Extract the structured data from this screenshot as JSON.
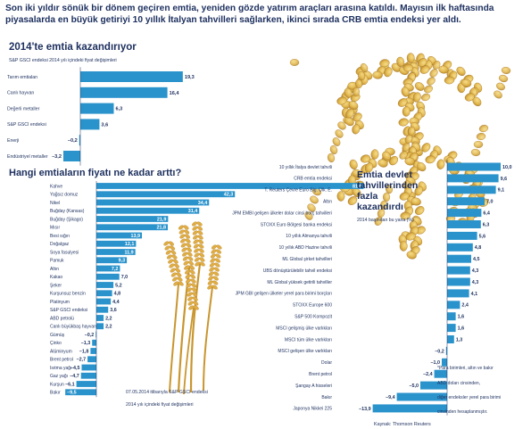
{
  "intro": "Son iki yıldır sönük bir dönem geçiren emtia, yeniden gözde yatırım araçları arasına katıldı. Mayısın ilk haftasında piyasalarda en büyük getiriyi 10 yıllık İtalyan tahvilleri sağlarken, ikinci sırada CRB emtia endeksi yer aldı.",
  "chart_data": [
    {
      "type": "bar",
      "orientation": "horizontal",
      "title": "2014'te emtia kazandırıyor",
      "subtitle": "S&P GSCI endeksi 2014 yılı içindeki fiyat değişimleri",
      "categories": [
        "Tarım emtiaları",
        "Canlı hayvan",
        "Değerli metaller",
        "S&P GSCI endeksi",
        "Enerji",
        "Endüstriyel metaller"
      ],
      "values": [
        19.3,
        16.4,
        6.3,
        3.6,
        -0.2,
        -3.2
      ],
      "labels": [
        "19,3",
        "16,4",
        "6,3",
        "3,6",
        "–0,2",
        "–3,2"
      ],
      "colors": {
        "bar": "#2a93cc",
        "text": "#1c2f5e"
      }
    },
    {
      "type": "bar",
      "orientation": "horizontal",
      "title": "Hangi emtiaların fiyatı ne kadar arttı?",
      "categories": [
        "Kahve",
        "Yağsız domuz",
        "Nikel",
        "Buğday (Kansas)",
        "Buğday (Şikago)",
        "Mısır",
        "Besi sığırı",
        "Doğalgaz",
        "Soya fasulyesi",
        "Pamuk",
        "Altın",
        "Kakao",
        "Şeker",
        "Kurşunsuz benzin",
        "Platinyum",
        "S&P GSCI endeksi",
        "ABD petrolü",
        "Canlı büyükbaş hayvan",
        "Gümüş",
        "Çinko",
        "Alüminyum",
        "Brent petrol",
        "Isıtma yağı",
        "Gaz yağı",
        "Kurşun",
        "Bakır"
      ],
      "values": [
        81.6,
        42.3,
        34.4,
        31.4,
        21.9,
        21.8,
        13.9,
        12.1,
        11.9,
        9.3,
        7.2,
        7.0,
        5.2,
        4.8,
        4.4,
        3.6,
        2.2,
        2.2,
        -0.2,
        -1.3,
        -1.8,
        -2.7,
        -4.5,
        -4.7,
        -6.1,
        -9.5
      ],
      "labels": [
        "81,6",
        "42,3",
        "34,4",
        "31,4",
        "21,9",
        "21,8",
        "13,9",
        "12,1",
        "11,9",
        "9,3",
        "7,2",
        "7,0",
        "5,2",
        "4,8",
        "4,4",
        "3,6",
        "2,2",
        "2,2",
        "–0,2",
        "–1,3",
        "–1,8",
        "–2,7",
        "–4,5",
        "–4,7",
        "–6,1",
        "–9,5"
      ],
      "note_lines": [
        "07.05.2014 itibarıyla S&P GSCI endeksi",
        "2014 yılı içindeki fiyat değişimleri"
      ],
      "colors": {
        "bar": "#2a93cc",
        "text": "#1c2f5e"
      }
    },
    {
      "type": "bar",
      "orientation": "horizontal",
      "title": "Emtia devlet tahvillerinden fazla kazandırdı",
      "subtitle": "2014 başından bu yana (%)",
      "categories": [
        "10 yıllık İtalya devlet tahvili",
        "CRB emtia endeksi",
        "T. Reuters Çevre Euro Blg. Ülk. E.",
        "Altın",
        "JPM EMBI gelişen ülkeler dolar cinsi borç tahvilleri",
        "STOXX Euro Bölgesi banka endeksi",
        "10 yıllık Almanya tahvili",
        "10 yıllık ABD Hazine tahvili",
        "ML Global şirket tahvilleri",
        "UBS dönüştürülebilir tahvil endeksi",
        "ML Global yüksek getirili tahviller",
        "JPM GBI gelişen ülkeler yerel para birimi borçları",
        "STOXX Europe 600",
        "S&P 500 Kompozit",
        "MSCI gelişmiş ülke varlıkları",
        "MSCI tüm ülke varlıkları",
        "MSCI gelişen ülke varlıkları",
        "Dolar",
        "Brent petrol",
        "Şangay A hisseleri",
        "Bakır",
        "Japonya Nikkei 225"
      ],
      "values": [
        10.0,
        9.6,
        9.1,
        7.0,
        6.4,
        6.3,
        5.6,
        4.8,
        4.5,
        4.3,
        4.3,
        4.1,
        2.4,
        1.6,
        1.6,
        1.3,
        -0.2,
        -1.0,
        -2.4,
        -5.0,
        -9.4,
        -13.9
      ],
      "labels": [
        "10,0",
        "9,6",
        "9,1",
        "7,0",
        "6,4",
        "6,3",
        "5,6",
        "4,8",
        "4,5",
        "4,3",
        "4,3",
        "4,1",
        "2,4",
        "1,6",
        "1,6",
        "1,3",
        "–0,2",
        "–1,0",
        "–2,4",
        "–5,0",
        "–9,4",
        "–13,9"
      ],
      "footnote": [
        "*Para birimleri, altın ve bakır",
        "ABD doları cinsinden,",
        "diğer endeksler yerel para birimi",
        "cinsinden hesaplanmıştır."
      ],
      "source": "Kaynak: Thomson Reuters",
      "colors": {
        "bar": "#2a93cc",
        "text": "#1c2f5e"
      }
    }
  ]
}
